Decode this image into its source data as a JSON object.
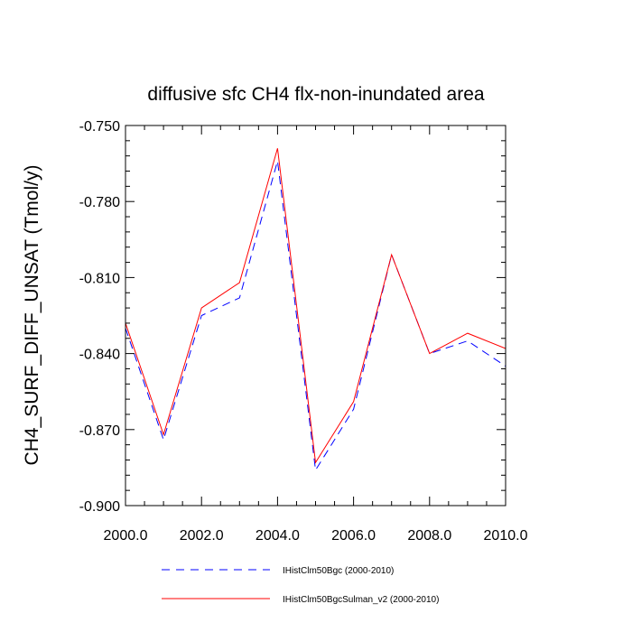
{
  "chart_data": {
    "type": "line",
    "title": "diffusive sfc CH4 flx-non-inundated area",
    "xlabel": "",
    "ylabel": "CH4_SURF_DIFF_UNSAT  (Tmol/y)",
    "xlim": [
      2000,
      2010
    ],
    "ylim": [
      -0.9,
      -0.75
    ],
    "x_ticks": [
      2000,
      2002,
      2004,
      2006,
      2008,
      2010
    ],
    "x_tick_labels": [
      "2000.0",
      "2002.0",
      "2004.0",
      "2006.0",
      "2008.0",
      "2010.0"
    ],
    "y_ticks": [
      -0.75,
      -0.78,
      -0.81,
      -0.84,
      -0.87,
      -0.9
    ],
    "y_tick_labels": [
      "-0.750",
      "-0.780",
      "-0.810",
      "-0.840",
      "-0.870",
      "-0.900"
    ],
    "x_minor_step": 0.5,
    "y_minor_step": 0.006,
    "grid": false,
    "legend_position": "bottom",
    "x": [
      2000,
      2001,
      2002,
      2003,
      2004,
      2005,
      2006,
      2007,
      2008,
      2009,
      2010
    ],
    "series": [
      {
        "name": "IHistClm50Bgc (2000-2010)",
        "color": "#0000ff",
        "style": "dashed",
        "values": [
          -0.83,
          -0.874,
          -0.825,
          -0.818,
          -0.764,
          -0.886,
          -0.862,
          -0.801,
          -0.84,
          -0.835,
          -0.845
        ]
      },
      {
        "name": "IHistClm50BgcSulman_v2 (2000-2010)",
        "color": "#ff0000",
        "style": "solid",
        "values": [
          -0.828,
          -0.872,
          -0.822,
          -0.812,
          -0.759,
          -0.883,
          -0.859,
          -0.801,
          -0.84,
          -0.832,
          -0.838
        ]
      }
    ]
  }
}
